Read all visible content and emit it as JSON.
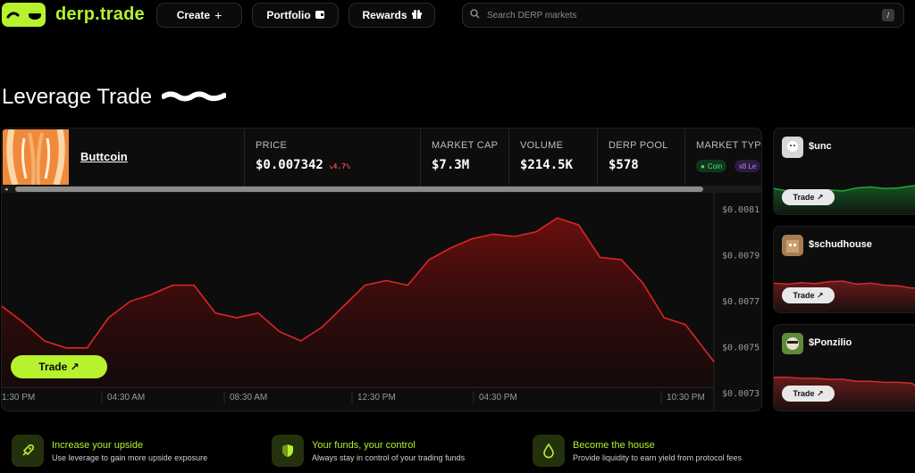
{
  "header": {
    "brand": "derp.trade",
    "nav": [
      {
        "label": "Create",
        "icon": "plus-icon"
      },
      {
        "label": "Portfolio",
        "icon": "wallet-icon"
      },
      {
        "label": "Rewards",
        "icon": "gift-icon"
      }
    ],
    "search_placeholder": "Search DERP markets",
    "search_shortcut": "/"
  },
  "page_title": "Leverage Trade",
  "market": {
    "name": "Buttcoin",
    "stats": {
      "price_label": "PRICE",
      "price_value": "$0.007342",
      "price_change": "↘4.7%",
      "market_cap_label": "MARKET CAP",
      "market_cap_value": "$7.3M",
      "volume_label": "VOLUME",
      "volume_value": "$214.5K",
      "pool_label": "DERP POOL",
      "pool_value": "$578",
      "type_label": "MARKET TYPE",
      "type_coin": "Coin",
      "type_leverage": "x8 Le"
    },
    "trade_label": "Trade ↗"
  },
  "chart_data": {
    "type": "area",
    "color": "#e02424",
    "y_ticks": [
      "$0.0081",
      "$0.0079",
      "$0.0077",
      "$0.0075",
      "$0.0073"
    ],
    "x_ticks": [
      "1:30 PM",
      "04:30 AM",
      "08:30 AM",
      "12:30 PM",
      "04:30 PM",
      "10:30 PM"
    ],
    "ylim": [
      0.0073,
      0.0081
    ],
    "x": [
      0,
      0.03,
      0.06,
      0.09,
      0.12,
      0.15,
      0.18,
      0.21,
      0.24,
      0.27,
      0.3,
      0.33,
      0.36,
      0.39,
      0.42,
      0.45,
      0.48,
      0.51,
      0.54,
      0.57,
      0.6,
      0.63,
      0.66,
      0.69,
      0.72,
      0.75,
      0.78,
      0.81,
      0.84,
      0.87,
      0.9,
      0.93,
      0.96,
      1.0
    ],
    "values": [
      0.00765,
      0.00758,
      0.0075,
      0.00747,
      0.00747,
      0.0076,
      0.00767,
      0.0077,
      0.00774,
      0.00774,
      0.00762,
      0.0076,
      0.00762,
      0.00754,
      0.0075,
      0.00756,
      0.00765,
      0.00774,
      0.00776,
      0.00774,
      0.00785,
      0.0079,
      0.00794,
      0.00796,
      0.00795,
      0.00797,
      0.00803,
      0.008,
      0.00786,
      0.00785,
      0.00775,
      0.0076,
      0.00757,
      0.00741
    ]
  },
  "side_markets": [
    {
      "name": "$unc",
      "trade_label": "Trade ↗",
      "color": "#1fa83a",
      "avatar_color": "#d8d8d8",
      "trend": [
        0.55,
        0.5,
        0.52,
        0.48,
        0.52,
        0.5,
        0.56,
        0.58,
        0.55,
        0.56,
        0.6,
        0.62
      ]
    },
    {
      "name": "$schudhouse",
      "trade_label": "Trade ↗",
      "color": "#d22b2b",
      "avatar_color": "#a67c52",
      "trend": [
        0.62,
        0.6,
        0.63,
        0.61,
        0.65,
        0.66,
        0.6,
        0.62,
        0.58,
        0.57,
        0.52,
        0.55
      ]
    },
    {
      "name": "$Ponzilio",
      "trade_label": "Trade ↗",
      "color": "#d22b2b",
      "avatar_color": "#5f8a3c",
      "trend": [
        0.7,
        0.7,
        0.68,
        0.68,
        0.66,
        0.66,
        0.62,
        0.62,
        0.6,
        0.6,
        0.58,
        0.4
      ]
    }
  ],
  "features": [
    {
      "title": "Increase your upside",
      "desc": "Use leverage to gain more upside exposure",
      "icon": "rocket-icon"
    },
    {
      "title": "Your funds, your control",
      "desc": "Always stay in control of your trading funds",
      "icon": "shield-icon"
    },
    {
      "title": "Become the house",
      "desc": "Provide liquidity to earn yield from protocol fees",
      "icon": "drop-icon"
    }
  ]
}
